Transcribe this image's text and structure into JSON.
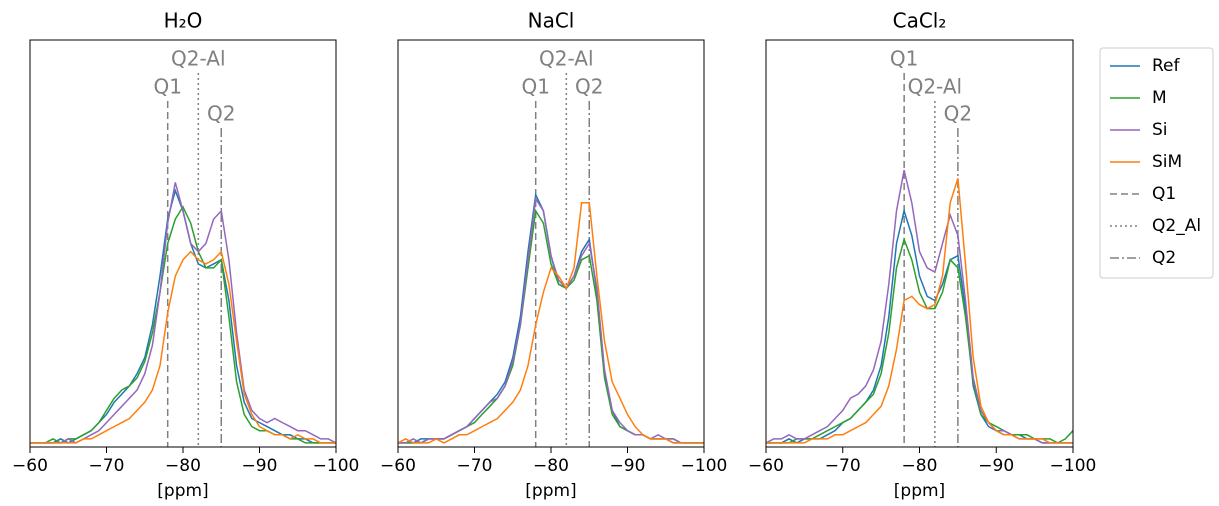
{
  "chart_data": [
    {
      "type": "line",
      "title": "H₂O",
      "xlabel": "[ppm]",
      "x": [
        -60,
        -61,
        -62,
        -63,
        -64,
        -65,
        -66,
        -67,
        -68,
        -69,
        -70,
        -71,
        -72,
        -73,
        -74,
        -75,
        -76,
        -77,
        -78,
        -79,
        -80,
        -81,
        -82,
        -83,
        -84,
        -85,
        -86,
        -87,
        -88,
        -89,
        -90,
        -91,
        -92,
        -93,
        -94,
        -95,
        -96,
        -97,
        -98,
        -99,
        -100
      ],
      "xlim": [
        -60,
        -100
      ],
      "xticks": [
        {
          "value": -60,
          "label": "−60"
        },
        {
          "value": -70,
          "label": "−70"
        },
        {
          "value": -80,
          "label": "−80"
        },
        {
          "value": -90,
          "label": "−90"
        },
        {
          "value": -100,
          "label": "−100"
        }
      ],
      "ylim": [
        0,
        100
      ],
      "series": [
        {
          "name": "Ref",
          "color": "#1f77b4",
          "values": [
            1,
            1,
            1,
            1,
            2,
            1,
            2,
            3,
            4,
            6,
            8,
            11,
            13,
            15,
            18,
            22,
            30,
            42,
            56,
            63,
            58,
            50,
            45,
            44,
            45,
            46,
            36,
            20,
            11,
            7,
            6,
            5,
            4,
            3,
            3,
            2,
            2,
            1,
            1,
            1,
            1
          ]
        },
        {
          "name": "M",
          "color": "#2ca02c",
          "values": [
            1,
            1,
            1,
            2,
            1,
            2,
            2,
            3,
            4,
            6,
            9,
            12,
            14,
            15,
            17,
            21,
            28,
            38,
            50,
            56,
            59,
            55,
            48,
            44,
            44,
            46,
            32,
            16,
            8,
            5,
            4,
            4,
            3,
            3,
            2,
            2,
            1,
            1,
            1,
            1,
            1
          ]
        },
        {
          "name": "Si",
          "color": "#9467bd",
          "values": [
            1,
            1,
            1,
            1,
            1,
            2,
            1,
            2,
            3,
            4,
            6,
            8,
            10,
            12,
            14,
            18,
            25,
            38,
            55,
            65,
            58,
            50,
            48,
            50,
            56,
            58,
            46,
            28,
            14,
            9,
            7,
            6,
            7,
            6,
            5,
            4,
            4,
            3,
            2,
            2,
            1
          ]
        },
        {
          "name": "SiM",
          "color": "#ff7f0e",
          "values": [
            1,
            1,
            1,
            1,
            1,
            1,
            1,
            2,
            2,
            3,
            4,
            5,
            6,
            7,
            9,
            11,
            14,
            20,
            33,
            42,
            46,
            48,
            46,
            45,
            46,
            48,
            40,
            26,
            13,
            8,
            5,
            4,
            3,
            3,
            2,
            3,
            2,
            2,
            1,
            1,
            1
          ]
        }
      ],
      "reference_lines": [
        {
          "name": "Q1",
          "label": "Q1",
          "x": -78,
          "style": "dashed",
          "color": "#808080"
        },
        {
          "name": "Q2_Al",
          "label": "Q2-Al",
          "x": -82,
          "style": "dotted",
          "color": "#808080"
        },
        {
          "name": "Q2",
          "label": "Q2",
          "x": -85,
          "style": "dashdot",
          "color": "#808080"
        }
      ]
    },
    {
      "type": "line",
      "title": "NaCl",
      "xlabel": "[ppm]",
      "x": [
        -60,
        -61,
        -62,
        -63,
        -64,
        -65,
        -66,
        -67,
        -68,
        -69,
        -70,
        -71,
        -72,
        -73,
        -74,
        -75,
        -76,
        -77,
        -78,
        -79,
        -80,
        -81,
        -82,
        -83,
        -84,
        -85,
        -86,
        -87,
        -88,
        -89,
        -90,
        -91,
        -92,
        -93,
        -94,
        -95,
        -96,
        -97,
        -98,
        -99,
        -100
      ],
      "xlim": [
        -60,
        -100
      ],
      "xticks": [
        {
          "value": -60,
          "label": "−60"
        },
        {
          "value": -70,
          "label": "−70"
        },
        {
          "value": -80,
          "label": "−80"
        },
        {
          "value": -90,
          "label": "−90"
        },
        {
          "value": -100,
          "label": "−100"
        }
      ],
      "ylim": [
        0,
        100
      ],
      "series": [
        {
          "name": "Ref",
          "color": "#1f77b4",
          "values": [
            1,
            1,
            1,
            2,
            2,
            2,
            2,
            3,
            4,
            5,
            7,
            9,
            11,
            13,
            16,
            22,
            32,
            48,
            62,
            58,
            47,
            40,
            39,
            42,
            48,
            51,
            38,
            18,
            9,
            5,
            4,
            3,
            3,
            2,
            2,
            2,
            1,
            1,
            1,
            1,
            1
          ]
        },
        {
          "name": "M",
          "color": "#2ca02c",
          "values": [
            1,
            1,
            1,
            1,
            2,
            2,
            2,
            3,
            4,
            5,
            6,
            8,
            10,
            12,
            15,
            20,
            30,
            44,
            58,
            55,
            45,
            40,
            39,
            41,
            46,
            47,
            36,
            17,
            8,
            5,
            4,
            3,
            3,
            2,
            2,
            2,
            2,
            1,
            1,
            1,
            1
          ]
        },
        {
          "name": "Si",
          "color": "#9467bd",
          "values": [
            1,
            1,
            2,
            1,
            2,
            2,
            2,
            3,
            4,
            5,
            7,
            9,
            11,
            12,
            15,
            21,
            30,
            46,
            61,
            58,
            47,
            41,
            39,
            42,
            47,
            50,
            39,
            19,
            9,
            6,
            4,
            3,
            3,
            2,
            3,
            2,
            2,
            1,
            1,
            1,
            1
          ]
        },
        {
          "name": "SiM",
          "color": "#ff7f0e",
          "values": [
            1,
            2,
            1,
            1,
            1,
            2,
            1,
            2,
            3,
            3,
            4,
            5,
            6,
            7,
            9,
            11,
            14,
            20,
            30,
            38,
            44,
            42,
            39,
            44,
            60,
            60,
            42,
            26,
            16,
            12,
            8,
            5,
            3,
            2,
            2,
            2,
            1,
            1,
            1,
            1,
            1
          ]
        }
      ],
      "reference_lines": [
        {
          "name": "Q1",
          "label": "Q1",
          "x": -78,
          "style": "dashed",
          "color": "#808080"
        },
        {
          "name": "Q2_Al",
          "label": "Q2-Al",
          "x": -82,
          "style": "dotted",
          "color": "#808080"
        },
        {
          "name": "Q2",
          "label": "Q2",
          "x": -85,
          "style": "dashdot",
          "color": "#808080"
        }
      ]
    },
    {
      "type": "line",
      "title": "CaCl₂",
      "xlabel": "[ppm]",
      "legend": "outside right",
      "x": [
        -60,
        -61,
        -62,
        -63,
        -64,
        -65,
        -66,
        -67,
        -68,
        -69,
        -70,
        -71,
        -72,
        -73,
        -74,
        -75,
        -76,
        -77,
        -78,
        -79,
        -80,
        -81,
        -82,
        -83,
        -84,
        -85,
        -86,
        -87,
        -88,
        -89,
        -90,
        -91,
        -92,
        -93,
        -94,
        -95,
        -96,
        -97,
        -98,
        -99,
        -100
      ],
      "xlim": [
        -60,
        -100
      ],
      "xticks": [
        {
          "value": -60,
          "label": "−60"
        },
        {
          "value": -70,
          "label": "−70"
        },
        {
          "value": -80,
          "label": "−80"
        },
        {
          "value": -90,
          "label": "−90"
        },
        {
          "value": -100,
          "label": "−100"
        }
      ],
      "ylim": [
        0,
        100
      ],
      "series": [
        {
          "name": "Ref",
          "color": "#1f77b4",
          "values": [
            1,
            1,
            1,
            2,
            1,
            2,
            2,
            2,
            3,
            4,
            6,
            7,
            9,
            11,
            14,
            20,
            32,
            50,
            58,
            52,
            42,
            37,
            36,
            40,
            46,
            47,
            34,
            15,
            8,
            5,
            4,
            3,
            3,
            3,
            2,
            2,
            1,
            1,
            1,
            1,
            1
          ]
        },
        {
          "name": "M",
          "color": "#2ca02c",
          "values": [
            1,
            1,
            1,
            1,
            2,
            2,
            2,
            3,
            4,
            5,
            6,
            7,
            9,
            11,
            13,
            18,
            28,
            44,
            51,
            46,
            38,
            34,
            34,
            38,
            46,
            44,
            32,
            16,
            8,
            6,
            5,
            4,
            3,
            3,
            3,
            2,
            2,
            2,
            1,
            2,
            4
          ]
        },
        {
          "name": "Si",
          "color": "#9467bd",
          "values": [
            1,
            2,
            2,
            3,
            2,
            2,
            3,
            4,
            5,
            7,
            9,
            12,
            13,
            15,
            19,
            26,
            40,
            58,
            68,
            60,
            48,
            44,
            43,
            50,
            57,
            52,
            36,
            17,
            9,
            6,
            4,
            4,
            3,
            2,
            2,
            2,
            1,
            1,
            1,
            1,
            1
          ]
        },
        {
          "name": "SiM",
          "color": "#ff7f0e",
          "values": [
            1,
            1,
            1,
            1,
            1,
            1,
            2,
            2,
            2,
            3,
            3,
            4,
            5,
            6,
            8,
            10,
            15,
            24,
            36,
            37,
            35,
            34,
            35,
            42,
            60,
            66,
            45,
            22,
            10,
            6,
            4,
            3,
            3,
            2,
            2,
            2,
            2,
            1,
            1,
            1,
            1
          ]
        }
      ],
      "reference_lines": [
        {
          "name": "Q1",
          "label": "Q1",
          "x": -78,
          "style": "dashed",
          "color": "#808080"
        },
        {
          "name": "Q2_Al",
          "label": "Q2-Al",
          "x": -82,
          "style": "dotted",
          "color": "#808080"
        },
        {
          "name": "Q2",
          "label": "Q2",
          "x": -85,
          "style": "dashdot",
          "color": "#808080"
        }
      ]
    }
  ]
}
